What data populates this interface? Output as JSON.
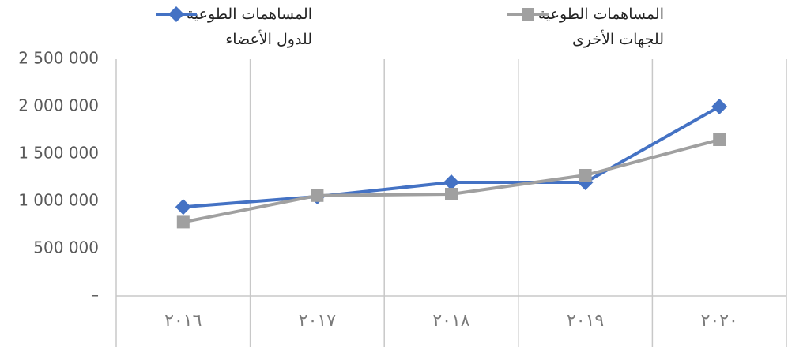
{
  "chart_data": {
    "type": "line",
    "categories": [
      "٢٠١٦",
      "٢٠١٧",
      "٢٠١٨",
      "٢٠١٩",
      "٢٠٢٠"
    ],
    "series": [
      {
        "name": "المساهمات الطوعية للدول الأعضاء",
        "color": "#4472c4",
        "marker": "diamond",
        "values": [
          940000,
          1050000,
          1200000,
          1200000,
          2000000
        ]
      },
      {
        "name": "المساهمات الطوعية للجهات الأخرى",
        "color": "#a0a0a0",
        "marker": "square",
        "values": [
          780000,
          1060000,
          1075000,
          1275000,
          1650000
        ]
      }
    ],
    "ylim": [
      0,
      2500000
    ],
    "yticks": [
      {
        "value": 0,
        "label": "–"
      },
      {
        "value": 500000,
        "label": "500 000"
      },
      {
        "value": 1000000,
        "label": "1 000 000"
      },
      {
        "value": 1500000,
        "label": "1 500 000"
      },
      {
        "value": 2000000,
        "label": "2 000 000"
      },
      {
        "value": 2500000,
        "label": "2 500 000"
      }
    ],
    "grid": false
  }
}
